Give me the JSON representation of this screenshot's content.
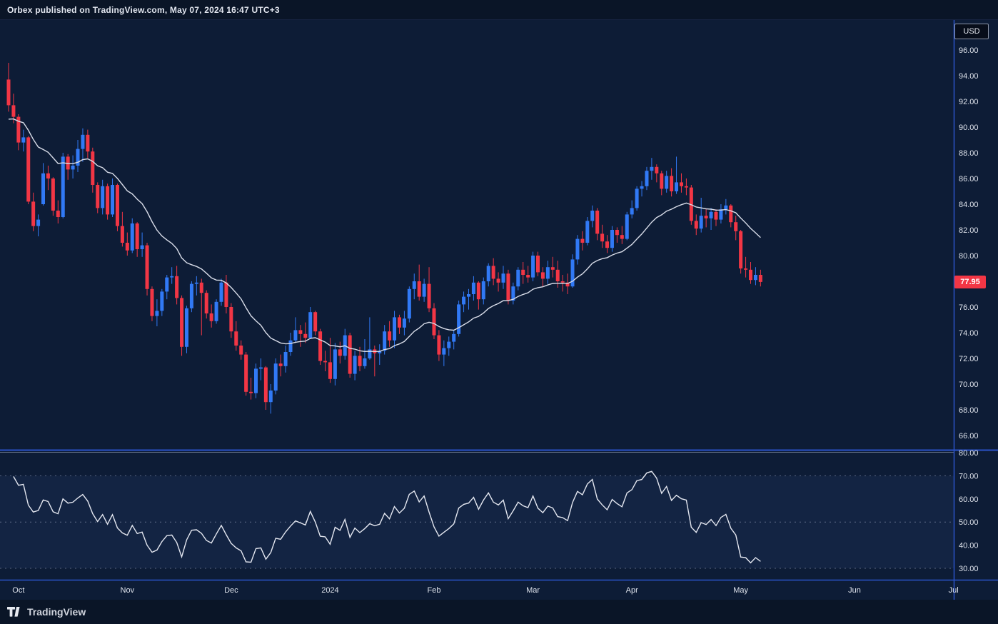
{
  "header": {
    "title": "Orbex published on TradingView.com, May 07, 2024 16:47 UTC+3"
  },
  "footer": {
    "brand": "TradingView"
  },
  "colors": {
    "background": "#0d1c36",
    "panel": "#0a1527",
    "up": "#3179f5",
    "down": "#f23645",
    "ma_line": "#d8dce8",
    "rsi_line": "#e4e7f0",
    "axis_line": "#2a52c8",
    "tick_label": "#dfe3ec",
    "dashed": "#9aa3bd",
    "rsi_band": "rgba(79,110,189,0.10)",
    "badge_bg": "#f23645",
    "badge_text": "#ffffff"
  },
  "chart_data": {
    "type": "candlestick",
    "currency": "USD",
    "last_price": 77.95,
    "last_price_label": "77.95",
    "price_axis_ticks": [
      96,
      94,
      92,
      90,
      88,
      86,
      84,
      82,
      80,
      78,
      76,
      74,
      72,
      70,
      68,
      66
    ],
    "time_axis": [
      {
        "label": "Oct",
        "index": 2
      },
      {
        "label": "Nov",
        "index": 24
      },
      {
        "label": "Dec",
        "index": 45
      },
      {
        "label": "2024",
        "index": 65
      },
      {
        "label": "Feb",
        "index": 86
      },
      {
        "label": "Mar",
        "index": 106
      },
      {
        "label": "Apr",
        "index": 126
      },
      {
        "label": "May",
        "index": 148
      },
      {
        "label": "Jun",
        "index": 171
      },
      {
        "label": "Jul",
        "index": 191
      }
    ],
    "overlay": {
      "name": "Moving Average",
      "period": 20
    },
    "oscillator": {
      "name": "RSI",
      "period": 14,
      "axis_ticks": [
        80,
        70,
        60,
        50,
        40,
        30
      ],
      "dashed_levels": [
        70,
        50,
        30
      ],
      "band": [
        30,
        70
      ]
    },
    "candles": [
      [
        93.7,
        95.0,
        91.2,
        91.7
      ],
      [
        91.7,
        92.6,
        90.3,
        90.8
      ],
      [
        90.8,
        91.0,
        88.2,
        88.8
      ],
      [
        88.8,
        89.8,
        88.1,
        89.2
      ],
      [
        89.2,
        89.3,
        84.0,
        84.2
      ],
      [
        84.2,
        84.9,
        81.9,
        82.3
      ],
      [
        82.3,
        83.2,
        81.5,
        82.8
      ],
      [
        84.0,
        87.2,
        83.9,
        86.4
      ],
      [
        86.4,
        87.0,
        85.1,
        86.0
      ],
      [
        86.0,
        86.1,
        83.1,
        83.5
      ],
      [
        83.5,
        84.3,
        82.5,
        83.0
      ],
      [
        83.0,
        88.0,
        82.9,
        87.7
      ],
      [
        87.7,
        87.9,
        85.9,
        86.7
      ],
      [
        86.7,
        87.8,
        86.0,
        87.0
      ],
      [
        87.0,
        89.0,
        86.5,
        88.3
      ],
      [
        88.3,
        89.9,
        87.3,
        89.4
      ],
      [
        89.4,
        89.8,
        87.6,
        88.1
      ],
      [
        88.1,
        88.4,
        84.9,
        85.5
      ],
      [
        85.5,
        85.7,
        83.3,
        83.7
      ],
      [
        83.7,
        85.9,
        83.2,
        85.4
      ],
      [
        85.4,
        85.6,
        82.8,
        83.2
      ],
      [
        83.2,
        86.0,
        83.0,
        85.5
      ],
      [
        85.5,
        85.6,
        81.9,
        82.3
      ],
      [
        82.3,
        83.4,
        80.7,
        81.0
      ],
      [
        81.0,
        81.8,
        80.0,
        80.4
      ],
      [
        80.4,
        82.9,
        80.2,
        82.5
      ],
      [
        82.5,
        82.6,
        79.9,
        80.5
      ],
      [
        80.5,
        81.8,
        79.9,
        80.8
      ],
      [
        80.8,
        81.0,
        76.9,
        77.4
      ],
      [
        77.4,
        77.6,
        74.9,
        75.3
      ],
      [
        75.3,
        76.6,
        74.5,
        75.7
      ],
      [
        75.7,
        77.4,
        75.3,
        77.2
      ],
      [
        77.2,
        78.5,
        76.6,
        78.3
      ],
      [
        78.3,
        79.1,
        77.8,
        78.4
      ],
      [
        78.4,
        79.2,
        76.2,
        76.7
      ],
      [
        76.7,
        76.9,
        72.2,
        72.9
      ],
      [
        72.9,
        76.1,
        72.4,
        75.9
      ],
      [
        75.9,
        78.0,
        75.6,
        77.8
      ],
      [
        77.8,
        78.4,
        76.9,
        77.9
      ],
      [
        77.9,
        78.2,
        73.8,
        77.1
      ],
      [
        77.1,
        77.3,
        75.1,
        75.5
      ],
      [
        75.5,
        76.2,
        74.4,
        74.9
      ],
      [
        74.9,
        76.6,
        74.7,
        76.4
      ],
      [
        76.4,
        78.2,
        76.1,
        77.9
      ],
      [
        77.9,
        78.5,
        75.5,
        76.0
      ],
      [
        76.0,
        76.3,
        73.6,
        74.1
      ],
      [
        74.1,
        74.9,
        72.6,
        73.0
      ],
      [
        73.0,
        73.4,
        71.9,
        72.3
      ],
      [
        72.3,
        72.5,
        69.1,
        69.4
      ],
      [
        69.4,
        70.5,
        68.8,
        69.3
      ],
      [
        69.3,
        71.6,
        68.9,
        71.2
      ],
      [
        71.2,
        72.0,
        70.3,
        71.3
      ],
      [
        71.3,
        71.4,
        68.0,
        68.6
      ],
      [
        68.6,
        70.0,
        67.7,
        69.5
      ],
      [
        69.5,
        72.0,
        69.2,
        71.6
      ],
      [
        71.6,
        72.3,
        70.6,
        71.4
      ],
      [
        71.4,
        73.0,
        70.9,
        72.5
      ],
      [
        72.5,
        74.0,
        72.2,
        73.4
      ],
      [
        73.4,
        75.2,
        73.2,
        74.2
      ],
      [
        74.2,
        74.6,
        72.9,
        73.9
      ],
      [
        73.9,
        74.8,
        73.2,
        73.6
      ],
      [
        73.6,
        76.0,
        73.5,
        75.6
      ],
      [
        75.6,
        75.7,
        73.8,
        74.1
      ],
      [
        74.1,
        74.3,
        71.5,
        71.8
      ],
      [
        71.8,
        72.6,
        71.0,
        71.7
      ],
      [
        71.7,
        73.6,
        70.1,
        70.4
      ],
      [
        70.4,
        73.2,
        69.9,
        72.7
      ],
      [
        72.7,
        73.3,
        71.6,
        72.2
      ],
      [
        72.2,
        74.3,
        71.9,
        73.8
      ],
      [
        73.8,
        74.0,
        70.5,
        70.8
      ],
      [
        70.8,
        72.6,
        70.3,
        72.2
      ],
      [
        72.2,
        72.9,
        71.0,
        71.4
      ],
      [
        71.4,
        73.5,
        71.2,
        72.0
      ],
      [
        72.0,
        75.2,
        71.9,
        72.7
      ],
      [
        72.7,
        73.0,
        70.6,
        72.4
      ],
      [
        72.4,
        73.1,
        71.5,
        72.6
      ],
      [
        72.6,
        74.6,
        72.3,
        74.1
      ],
      [
        74.1,
        74.9,
        72.9,
        73.4
      ],
      [
        73.4,
        75.7,
        72.8,
        75.2
      ],
      [
        75.2,
        75.4,
        73.9,
        74.4
      ],
      [
        74.4,
        75.7,
        73.8,
        75.1
      ],
      [
        75.1,
        77.6,
        74.8,
        77.4
      ],
      [
        77.4,
        78.6,
        76.6,
        78.0
      ],
      [
        78.0,
        79.3,
        76.5,
        76.8
      ],
      [
        76.8,
        78.2,
        76.4,
        77.8
      ],
      [
        77.8,
        79.1,
        75.6,
        75.9
      ],
      [
        75.9,
        76.3,
        73.5,
        73.8
      ],
      [
        73.8,
        74.2,
        71.8,
        72.3
      ],
      [
        72.3,
        73.4,
        71.4,
        72.8
      ],
      [
        72.8,
        73.7,
        72.2,
        73.3
      ],
      [
        73.3,
        74.2,
        72.7,
        73.9
      ],
      [
        73.9,
        76.5,
        73.7,
        76.2
      ],
      [
        76.2,
        77.2,
        75.6,
        76.8
      ],
      [
        76.8,
        77.4,
        75.8,
        77.0
      ],
      [
        77.0,
        78.4,
        76.5,
        77.9
      ],
      [
        77.9,
        78.0,
        75.8,
        76.6
      ],
      [
        76.6,
        78.3,
        76.2,
        78.0
      ],
      [
        78.0,
        79.4,
        77.6,
        79.2
      ],
      [
        79.2,
        79.8,
        77.7,
        78.2
      ],
      [
        78.2,
        78.7,
        77.2,
        77.9
      ],
      [
        77.9,
        79.2,
        77.4,
        78.6
      ],
      [
        78.6,
        78.9,
        76.2,
        76.5
      ],
      [
        76.5,
        77.9,
        76.2,
        77.6
      ],
      [
        77.6,
        79.1,
        77.3,
        78.9
      ],
      [
        78.9,
        79.5,
        77.8,
        78.5
      ],
      [
        78.5,
        79.2,
        77.9,
        78.3
      ],
      [
        78.3,
        80.3,
        78.0,
        80.0
      ],
      [
        80.0,
        80.3,
        78.4,
        78.7
      ],
      [
        78.7,
        79.1,
        77.6,
        78.2
      ],
      [
        78.2,
        79.6,
        77.8,
        79.1
      ],
      [
        79.1,
        79.9,
        78.3,
        78.9
      ],
      [
        78.9,
        79.6,
        77.5,
        78.0
      ],
      [
        78.0,
        78.5,
        77.2,
        77.9
      ],
      [
        77.9,
        78.6,
        77.0,
        77.6
      ],
      [
        77.6,
        80.1,
        77.5,
        79.7
      ],
      [
        79.7,
        81.6,
        79.3,
        81.3
      ],
      [
        81.3,
        81.9,
        80.4,
        81.0
      ],
      [
        81.0,
        83.0,
        80.8,
        82.7
      ],
      [
        82.7,
        83.9,
        82.2,
        83.5
      ],
      [
        83.5,
        83.7,
        81.2,
        81.7
      ],
      [
        81.7,
        82.4,
        80.6,
        81.1
      ],
      [
        81.1,
        81.6,
        80.2,
        80.6
      ],
      [
        80.6,
        82.3,
        80.3,
        82.0
      ],
      [
        82.0,
        82.2,
        81.0,
        81.6
      ],
      [
        81.6,
        82.3,
        80.9,
        81.3
      ],
      [
        81.3,
        83.4,
        81.2,
        83.2
      ],
      [
        83.2,
        84.3,
        82.9,
        83.7
      ],
      [
        83.7,
        85.4,
        83.5,
        85.2
      ],
      [
        85.2,
        85.8,
        84.6,
        85.4
      ],
      [
        85.4,
        86.9,
        85.1,
        86.6
      ],
      [
        86.6,
        87.6,
        85.9,
        86.9
      ],
      [
        86.9,
        87.1,
        85.7,
        86.4
      ],
      [
        86.4,
        86.6,
        84.7,
        85.2
      ],
      [
        85.2,
        86.6,
        84.9,
        86.2
      ],
      [
        86.2,
        86.8,
        84.6,
        85.0
      ],
      [
        85.0,
        87.7,
        84.8,
        85.7
      ],
      [
        85.7,
        86.4,
        84.9,
        85.4
      ],
      [
        85.4,
        86.0,
        84.7,
        85.3
      ],
      [
        85.3,
        85.5,
        82.4,
        82.7
      ],
      [
        82.7,
        83.2,
        81.6,
        82.1
      ],
      [
        82.1,
        84.5,
        81.8,
        83.1
      ],
      [
        83.1,
        83.6,
        82.2,
        82.9
      ],
      [
        82.9,
        83.7,
        82.0,
        83.4
      ],
      [
        83.4,
        83.6,
        82.3,
        82.8
      ],
      [
        82.8,
        84.0,
        82.5,
        83.6
      ],
      [
        83.6,
        84.4,
        83.2,
        83.9
      ],
      [
        83.9,
        84.0,
        82.2,
        82.6
      ],
      [
        82.6,
        83.1,
        81.2,
        81.9
      ],
      [
        81.9,
        82.0,
        78.6,
        79.0
      ],
      [
        79.0,
        79.9,
        78.3,
        78.9
      ],
      [
        78.9,
        79.5,
        77.8,
        78.1
      ],
      [
        78.1,
        79.1,
        77.7,
        78.5
      ],
      [
        78.5,
        78.9,
        77.6,
        77.95
      ]
    ]
  }
}
